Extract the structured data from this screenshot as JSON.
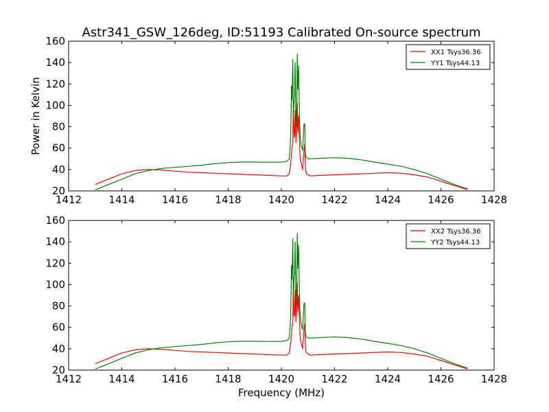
{
  "chart_data": [
    {
      "type": "line",
      "title": "Astr341_GSW_126deg, ID:51193 Calibrated On-source spectrum",
      "xlabel": "",
      "ylabel": "Power in Kelvin",
      "xlim": [
        1412,
        1428
      ],
      "ylim": [
        20,
        160
      ],
      "xticks": [
        1412,
        1414,
        1416,
        1418,
        1420,
        1422,
        1424,
        1426,
        1428
      ],
      "yticks": [
        20,
        40,
        60,
        80,
        100,
        120,
        140,
        160
      ],
      "legend_position": "top-right",
      "series": [
        {
          "name": "XX1 Tsys36.36",
          "color": "#ff0000",
          "x": [
            1413.0,
            1413.5,
            1414.0,
            1414.5,
            1415.0,
            1415.5,
            1416.0,
            1416.5,
            1417.0,
            1417.5,
            1418.0,
            1418.5,
            1419.0,
            1419.5,
            1420.0,
            1420.2,
            1420.3,
            1420.35,
            1420.4,
            1420.43,
            1420.45,
            1420.48,
            1420.5,
            1420.52,
            1420.55,
            1420.58,
            1420.6,
            1420.62,
            1420.65,
            1420.68,
            1420.7,
            1420.72,
            1420.75,
            1420.8,
            1420.85,
            1420.88,
            1420.9,
            1420.92,
            1420.95,
            1421.0,
            1421.1,
            1421.5,
            1422.0,
            1422.5,
            1423.0,
            1423.5,
            1424.0,
            1424.5,
            1425.0,
            1425.5,
            1426.0,
            1426.5,
            1427.0
          ],
          "y": [
            26,
            31,
            36,
            39,
            40,
            39.5,
            38.5,
            37.5,
            37,
            36.5,
            36,
            35.5,
            35,
            34.5,
            34,
            34,
            36,
            45,
            60,
            65,
            99,
            70,
            72,
            95,
            65,
            80,
            102,
            75,
            90,
            65,
            55,
            48,
            45,
            40,
            58,
            64,
            45,
            38,
            36,
            35,
            34,
            34.5,
            35,
            35.5,
            36,
            36.5,
            37,
            36.5,
            35,
            33,
            29,
            25,
            21
          ]
        },
        {
          "name": "YY1 Tsys44.13",
          "color": "#008000",
          "x": [
            1413.0,
            1413.5,
            1414.0,
            1414.5,
            1415.0,
            1415.5,
            1416.0,
            1416.5,
            1417.0,
            1417.5,
            1418.0,
            1418.5,
            1419.0,
            1419.5,
            1420.0,
            1420.2,
            1420.3,
            1420.35,
            1420.38,
            1420.4,
            1420.43,
            1420.45,
            1420.48,
            1420.5,
            1420.52,
            1420.55,
            1420.58,
            1420.6,
            1420.62,
            1420.65,
            1420.68,
            1420.7,
            1420.72,
            1420.75,
            1420.8,
            1420.85,
            1420.88,
            1420.9,
            1420.92,
            1420.95,
            1421.0,
            1421.1,
            1421.5,
            1422.0,
            1422.5,
            1423.0,
            1423.5,
            1424.0,
            1424.5,
            1425.0,
            1425.5,
            1426.0,
            1426.5,
            1427.0
          ],
          "y": [
            21,
            26,
            31,
            36,
            39,
            41,
            42,
            43,
            44,
            45.5,
            46.5,
            47,
            47,
            46.8,
            47,
            47.5,
            50,
            70,
            118,
            105,
            143,
            90,
            105,
            110,
            140,
            80,
            100,
            148,
            115,
            137,
            90,
            75,
            68,
            62,
            58,
            82,
            83,
            55,
            52,
            51,
            50,
            50,
            50.5,
            51,
            50.5,
            49,
            47,
            45,
            43,
            40,
            36,
            31,
            26,
            22
          ]
        }
      ]
    },
    {
      "type": "line",
      "title": "",
      "xlabel": "Frequency (MHz)",
      "ylabel": "",
      "xlim": [
        1412,
        1428
      ],
      "ylim": [
        20,
        160
      ],
      "xticks": [
        1412,
        1414,
        1416,
        1418,
        1420,
        1422,
        1424,
        1426,
        1428
      ],
      "yticks": [
        20,
        40,
        60,
        80,
        100,
        120,
        140,
        160
      ],
      "legend_position": "top-right",
      "series": [
        {
          "name": "XX2 Tsys36.36",
          "color": "#ff0000",
          "x": [
            1413.0,
            1413.5,
            1414.0,
            1414.5,
            1415.0,
            1415.5,
            1416.0,
            1416.5,
            1417.0,
            1417.5,
            1418.0,
            1418.5,
            1419.0,
            1419.5,
            1420.0,
            1420.2,
            1420.3,
            1420.35,
            1420.4,
            1420.43,
            1420.45,
            1420.48,
            1420.5,
            1420.52,
            1420.55,
            1420.58,
            1420.6,
            1420.62,
            1420.65,
            1420.68,
            1420.7,
            1420.72,
            1420.75,
            1420.8,
            1420.85,
            1420.88,
            1420.9,
            1420.92,
            1420.95,
            1421.0,
            1421.1,
            1421.5,
            1422.0,
            1422.5,
            1423.0,
            1423.5,
            1424.0,
            1424.5,
            1425.0,
            1425.5,
            1426.0,
            1426.5,
            1427.0
          ],
          "y": [
            26,
            31,
            36,
            39,
            40,
            39.5,
            38.5,
            37.5,
            37,
            36.5,
            36,
            35.5,
            35,
            34.5,
            34,
            34,
            36,
            45,
            60,
            65,
            99,
            70,
            72,
            95,
            65,
            80,
            102,
            75,
            90,
            65,
            55,
            48,
            45,
            40,
            58,
            64,
            45,
            38,
            36,
            35,
            34,
            34.5,
            35,
            35.5,
            36,
            36.5,
            37,
            36.5,
            35,
            33,
            29,
            25,
            21
          ]
        },
        {
          "name": "YY2 Tsys44.13",
          "color": "#008000",
          "x": [
            1413.0,
            1413.5,
            1414.0,
            1414.5,
            1415.0,
            1415.5,
            1416.0,
            1416.5,
            1417.0,
            1417.5,
            1418.0,
            1418.5,
            1419.0,
            1419.5,
            1420.0,
            1420.2,
            1420.3,
            1420.35,
            1420.38,
            1420.4,
            1420.43,
            1420.45,
            1420.48,
            1420.5,
            1420.52,
            1420.55,
            1420.58,
            1420.6,
            1420.62,
            1420.65,
            1420.68,
            1420.7,
            1420.72,
            1420.75,
            1420.8,
            1420.85,
            1420.88,
            1420.9,
            1420.92,
            1420.95,
            1421.0,
            1421.1,
            1421.5,
            1422.0,
            1422.5,
            1423.0,
            1423.5,
            1424.0,
            1424.5,
            1425.0,
            1425.5,
            1426.0,
            1426.5,
            1427.0
          ],
          "y": [
            21,
            26,
            31,
            36,
            39,
            41,
            42,
            43,
            44,
            45.5,
            46.5,
            47,
            47,
            46.8,
            47,
            47.5,
            50,
            70,
            118,
            105,
            143,
            90,
            105,
            110,
            140,
            80,
            100,
            148,
            115,
            137,
            90,
            75,
            68,
            62,
            58,
            82,
            83,
            55,
            52,
            51,
            50,
            50,
            50.5,
            51,
            50.5,
            49,
            47,
            45,
            43,
            40,
            36,
            31,
            26,
            22
          ]
        }
      ]
    }
  ]
}
